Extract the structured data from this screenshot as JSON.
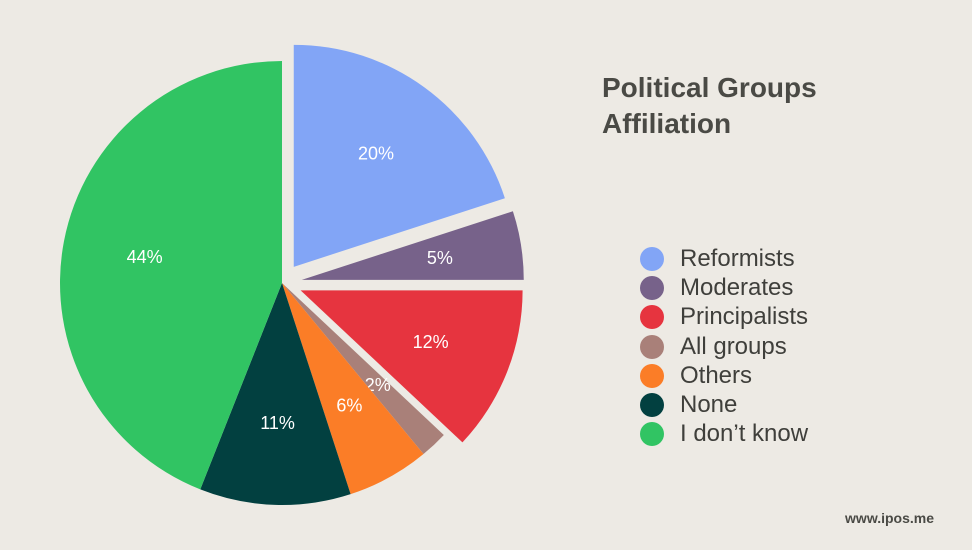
{
  "chart_data": {
    "type": "pie",
    "title": "Political Groups Affiliation",
    "title_lines": [
      "Political Groups",
      "Affiliation"
    ],
    "slices": [
      {
        "name": "Reformists",
        "value": 20,
        "label": "20%",
        "color": "#82a5f6",
        "exploded": true
      },
      {
        "name": "Moderates",
        "value": 5,
        "label": "5%",
        "color": "#77628a",
        "exploded": true
      },
      {
        "name": "Principalists",
        "value": 12,
        "label": "12%",
        "color": "#e6343f",
        "exploded": true
      },
      {
        "name": "All groups",
        "value": 2,
        "label": "2%",
        "color": "#a98079",
        "exploded": false
      },
      {
        "name": "Others",
        "value": 6,
        "label": "6%",
        "color": "#fb7d27",
        "exploded": false
      },
      {
        "name": "None",
        "value": 11,
        "label": "11%",
        "color": "#024040",
        "exploded": false
      },
      {
        "name": "I don’t know",
        "value": 44,
        "label": "44%",
        "color": "#31c463",
        "exploded": false
      }
    ],
    "legend_position": "right"
  },
  "footer": {
    "url": "www.ipos.me"
  }
}
